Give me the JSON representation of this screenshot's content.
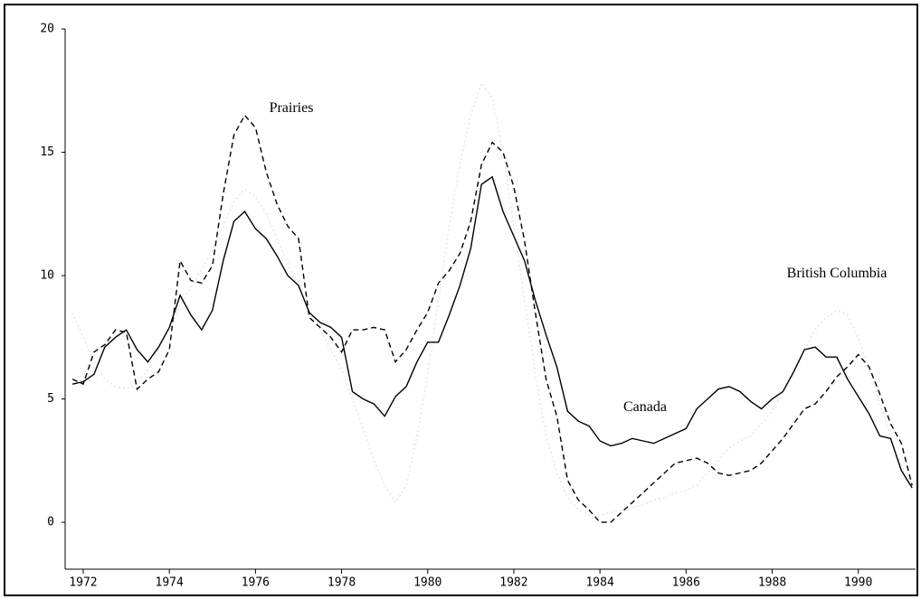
{
  "chart_data": {
    "type": "line",
    "x": [
      1971.75,
      1972,
      1972.25,
      1972.5,
      1972.75,
      1973,
      1973.25,
      1973.5,
      1973.75,
      1974,
      1974.25,
      1974.5,
      1974.75,
      1975,
      1975.25,
      1975.5,
      1975.75,
      1976,
      1976.25,
      1976.5,
      1976.75,
      1977,
      1977.25,
      1977.5,
      1977.75,
      1978,
      1978.25,
      1978.5,
      1978.75,
      1979,
      1979.25,
      1979.5,
      1979.75,
      1980,
      1980.25,
      1980.5,
      1980.75,
      1981,
      1981.25,
      1981.5,
      1981.75,
      1982,
      1982.25,
      1982.5,
      1982.75,
      1983,
      1983.25,
      1983.5,
      1983.75,
      1984,
      1984.25,
      1984.5,
      1984.75,
      1985,
      1985.25,
      1985.5,
      1985.75,
      1986,
      1986.25,
      1986.5,
      1986.75,
      1987,
      1987.25,
      1987.5,
      1987.75,
      1988,
      1988.25,
      1988.5,
      1988.75,
      1989,
      1989.25,
      1989.5,
      1989.75,
      1990,
      1990.25,
      1990.5,
      1990.75,
      1991,
      1991.25
    ],
    "series": [
      {
        "name": "British Columbia",
        "color": "#e4e4e4",
        "style": "dotted",
        "values": [
          8.5,
          7.5,
          6.5,
          5.8,
          5.5,
          5.4,
          5.6,
          6.2,
          7.0,
          7.8,
          8.8,
          9.5,
          10.3,
          11.0,
          12.0,
          13.0,
          13.5,
          13.2,
          12.5,
          11.5,
          10.5,
          9.5,
          8.5,
          7.8,
          7.0,
          6.2,
          5.0,
          3.8,
          2.5,
          1.5,
          0.8,
          1.5,
          3.5,
          6.0,
          9.0,
          12.0,
          14.5,
          16.5,
          17.8,
          17.2,
          15.0,
          12.0,
          9.0,
          6.0,
          3.5,
          2.0,
          1.0,
          0.5,
          0.3,
          0.3,
          0.4,
          0.5,
          0.6,
          0.7,
          0.9,
          1.0,
          1.2,
          1.3,
          1.5,
          2.0,
          2.5,
          3.0,
          3.3,
          3.5,
          4.0,
          4.5,
          5.3,
          6.2,
          7.0,
          7.8,
          8.3,
          8.6,
          8.4,
          7.5,
          6.2,
          4.8,
          3.5,
          2.2,
          1.2
        ]
      },
      {
        "name": "Prairies",
        "color": "#000000",
        "style": "dashed",
        "values": [
          5.8,
          5.6,
          6.9,
          7.2,
          7.8,
          7.7,
          5.4,
          5.8,
          6.1,
          7.0,
          10.6,
          9.8,
          9.7,
          10.4,
          13.3,
          15.7,
          16.5,
          16.0,
          14.2,
          12.9,
          12.0,
          11.5,
          8.3,
          7.9,
          7.5,
          6.9,
          7.8,
          7.8,
          7.9,
          7.8,
          6.5,
          7.0,
          7.8,
          8.5,
          9.7,
          10.2,
          10.9,
          12.2,
          14.5,
          15.4,
          15.0,
          13.6,
          11.4,
          8.5,
          5.8,
          4.3,
          1.7,
          0.9,
          0.5,
          0.0,
          0.0,
          0.4,
          0.8,
          1.2,
          1.6,
          2.0,
          2.4,
          2.5,
          2.6,
          2.4,
          2.0,
          1.9,
          2.0,
          2.1,
          2.4,
          2.9,
          3.4,
          4.0,
          4.6,
          4.8,
          5.3,
          5.9,
          6.3,
          6.8,
          6.3,
          5.2,
          4.0,
          3.2,
          1.5
        ]
      },
      {
        "name": "Canada",
        "color": "#000000",
        "style": "solid",
        "values": [
          5.6,
          5.7,
          6.0,
          7.1,
          7.5,
          7.8,
          7.0,
          6.5,
          7.1,
          7.9,
          9.2,
          8.4,
          7.8,
          8.6,
          10.6,
          12.2,
          12.6,
          11.9,
          11.5,
          10.8,
          10.0,
          9.6,
          8.5,
          8.1,
          7.9,
          7.5,
          5.3,
          5.0,
          4.8,
          4.3,
          5.1,
          5.5,
          6.5,
          7.3,
          7.3,
          8.4,
          9.6,
          11.1,
          13.7,
          14.0,
          12.6,
          11.6,
          10.6,
          9.0,
          7.6,
          6.3,
          4.5,
          4.1,
          3.9,
          3.3,
          3.1,
          3.2,
          3.4,
          3.3,
          3.2,
          3.4,
          3.6,
          3.8,
          4.6,
          5.0,
          5.4,
          5.5,
          5.3,
          4.9,
          4.6,
          5.0,
          5.3,
          6.1,
          7.0,
          7.1,
          6.7,
          6.7,
          5.8,
          5.1,
          4.4,
          3.5,
          3.4,
          2.1,
          1.4
        ]
      }
    ],
    "xlim": [
      1971.58,
      1991.33
    ],
    "xticks": [
      1972,
      1974,
      1976,
      1978,
      1980,
      1982,
      1984,
      1986,
      1988,
      1990
    ],
    "ylim": [
      -1.9,
      20
    ],
    "yticks": [
      0,
      5,
      10,
      15,
      20
    ]
  }
}
